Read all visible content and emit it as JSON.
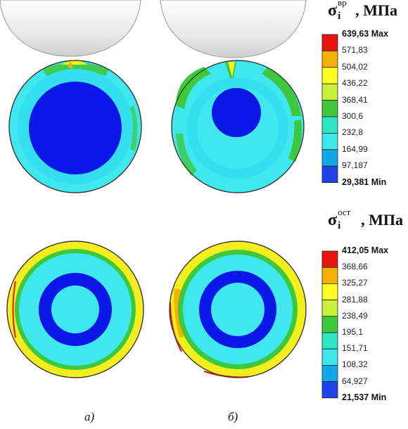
{
  "panels": {
    "a_label": "а)",
    "b_label": "б)"
  },
  "legend_top": {
    "symbol": "σ",
    "sub": "i",
    "sup": "вр",
    "unit": ", МПа",
    "values": [
      "639,63 Max",
      "571,83",
      "504,02",
      "436,22",
      "368,41",
      "300,6",
      "232,8",
      "164,99",
      "97,187",
      "29,381 Min"
    ],
    "colors": [
      "#e8140f",
      "#f5b000",
      "#ffff22",
      "#c8f03c",
      "#3ec83e",
      "#2ee6c4",
      "#3fe8ee",
      "#12a8e8",
      "#1c44e6"
    ]
  },
  "legend_bottom": {
    "symbol": "σ",
    "sub": "i",
    "sup": "ост",
    "unit": ", МПа",
    "values": [
      "412,05 Max",
      "368,66",
      "325,27",
      "281,88",
      "238,49",
      "195,1",
      "151,71",
      "108,32",
      "64,927",
      "21,537 Min"
    ],
    "colors": [
      "#e8140f",
      "#f5b000",
      "#ffff22",
      "#c8f03c",
      "#3ec83e",
      "#2ee6c4",
      "#3fe8ee",
      "#12a8e8",
      "#1c44e6"
    ]
  },
  "palette": {
    "deep_blue": "#0a17e6",
    "cyan": "#3fe8ee",
    "light_cyan": "#34dff0",
    "green": "#3ec83e",
    "yellow": "#f4ee1c",
    "orange": "#f5b000",
    "red": "#e8140f",
    "roller": "#eeeeee"
  }
}
